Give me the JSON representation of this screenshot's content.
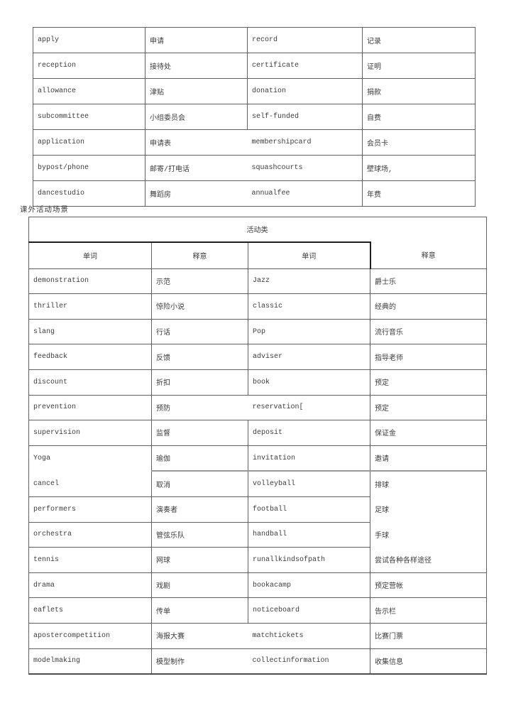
{
  "section_label": "课外活动场景",
  "table1": {
    "rows": [
      [
        "apply",
        "申请",
        "record",
        "记录"
      ],
      [
        "reception",
        "接待处",
        "certificate",
        "证明"
      ],
      [
        "allowance",
        "津贴",
        "donation",
        "捐款"
      ],
      [
        "subcommittee",
        "小组委员会",
        "self-funded",
        "自费"
      ],
      [
        "application",
        "申请表",
        "membershipcard",
        "会员卡"
      ],
      [
        "bypost/phone",
        "邮寄/打电话",
        "squashcourts",
        "壁球场,"
      ],
      [
        "dancestudio",
        "舞蹈房",
        "annualfee",
        "年费"
      ]
    ]
  },
  "table2": {
    "title": "活动类",
    "headers": [
      "单词",
      "释意",
      "单词",
      "释意"
    ],
    "rows": [
      [
        "demonstration",
        "示范",
        "Jazz",
        "爵士乐"
      ],
      [
        "thriller",
        "惊险小说",
        "classic",
        "经典的"
      ],
      [
        "slang",
        "行话",
        "Pop",
        "流行音乐"
      ],
      [
        "feedback",
        "反馈",
        "adviser",
        "指导老师"
      ],
      [
        "discount",
        "折扣",
        "book",
        "预定"
      ],
      [
        "prevention",
        "预防",
        "reservation[",
        "预定"
      ],
      [
        "supervision",
        "监督",
        "deposit",
        "保证金"
      ],
      [
        "Yoga",
        "瑜伽",
        "invitation",
        "邀请"
      ],
      [
        "cancel",
        "取消",
        "volleyball",
        "排球"
      ],
      [
        "performers",
        "演奏者",
        "football",
        "足球"
      ],
      [
        "orchestra",
        "管弦乐队",
        "handball",
        "手球"
      ],
      [
        "tennis",
        "网球",
        "runallkindsofpath",
        "尝试各种各样途径"
      ],
      [
        "drama",
        "戏剧",
        "bookacamp",
        "预定营帐"
      ],
      [
        "eaflets",
        "传单",
        "noticeboard",
        "告示栏"
      ],
      [
        "apostercompetition",
        "海报大赛",
        "matchtickets",
        "比赛门票"
      ],
      [
        "modelmaking",
        "模型制作",
        "collectinformation",
        "收集信息"
      ]
    ]
  },
  "colors": {
    "text": "#3c3c3c",
    "border_inner": "#616161",
    "border_header_bold": "#1e1e1e",
    "thick_separator": "#979797",
    "background": "#ffffff"
  }
}
